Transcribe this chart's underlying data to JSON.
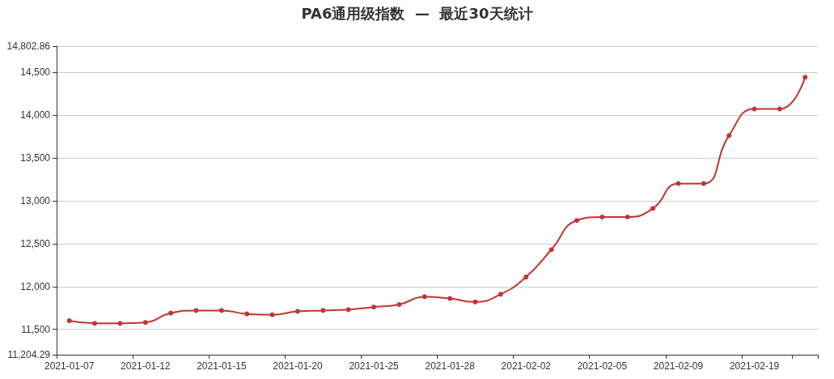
{
  "chart_data": {
    "type": "line",
    "title": "PA6通用级指数  —  最近30天统计",
    "categories": [
      "2021-01-07",
      null,
      null,
      "2021-01-12",
      null,
      null,
      "2021-01-15",
      null,
      null,
      "2021-01-20",
      null,
      null,
      "2021-01-25",
      null,
      null,
      "2021-01-28",
      null,
      null,
      "2021-02-02",
      null,
      null,
      "2021-02-05",
      null,
      null,
      "2021-02-09",
      null,
      null,
      "2021-02-19",
      null,
      null
    ],
    "series": [
      {
        "color": "#c23531",
        "values": [
          11600,
          11570,
          11570,
          11580,
          11690,
          11720,
          11720,
          11680,
          11670,
          11710,
          11720,
          11730,
          11760,
          11790,
          11880,
          11860,
          11820,
          11910,
          12110,
          12430,
          12770,
          12810,
          12810,
          12910,
          13200,
          13200,
          13760,
          14070,
          14070,
          14440
        ]
      }
    ],
    "ylim": [
      11204.29,
      14802.86
    ],
    "yticks": [
      {
        "value": 11204.29,
        "label": "11,204.29"
      },
      {
        "value": 11500,
        "label": "11,500"
      },
      {
        "value": 12000,
        "label": "12,000"
      },
      {
        "value": 12500,
        "label": "12,500"
      },
      {
        "value": 13000,
        "label": "13,000"
      },
      {
        "value": 13500,
        "label": "13,500"
      },
      {
        "value": 14000,
        "label": "14,000"
      },
      {
        "value": 14500,
        "label": "14,500"
      },
      {
        "value": 14802.86,
        "label": "14,802.86"
      }
    ],
    "grid": "y",
    "marker": "circle",
    "line_style": "solid"
  }
}
